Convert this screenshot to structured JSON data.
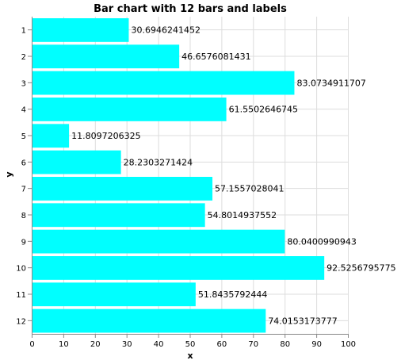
{
  "chart_data": {
    "type": "bar",
    "orientation": "horizontal",
    "title": "Bar chart with 12 bars and labels",
    "xlabel": "x",
    "ylabel": "y",
    "categories": [
      "1",
      "2",
      "3",
      "4",
      "5",
      "6",
      "7",
      "8",
      "9",
      "10",
      "11",
      "12"
    ],
    "values": [
      30.6946241452,
      46.6576081431,
      83.0734911707,
      61.5502646745,
      11.8097206325,
      28.2303271424,
      57.1557028041,
      54.8014937552,
      80.0400990943,
      92.5256795775,
      51.8435792444,
      74.0153173777
    ],
    "labels": [
      "30.6946241452",
      "46.6576081431",
      "83.0734911707",
      "61.5502646745",
      "11.8097206325",
      "28.2303271424",
      "57.1557028041",
      "54.8014937552",
      "80.0400990943",
      "92.5256795775",
      "51.8435792444",
      "74.0153173777"
    ],
    "xlim": [
      0,
      100
    ],
    "xticks": [
      "0",
      "10",
      "20",
      "30",
      "40",
      "50",
      "60",
      "70",
      "80",
      "90",
      "100"
    ],
    "grid": true,
    "bar_color": "#00ffff"
  }
}
